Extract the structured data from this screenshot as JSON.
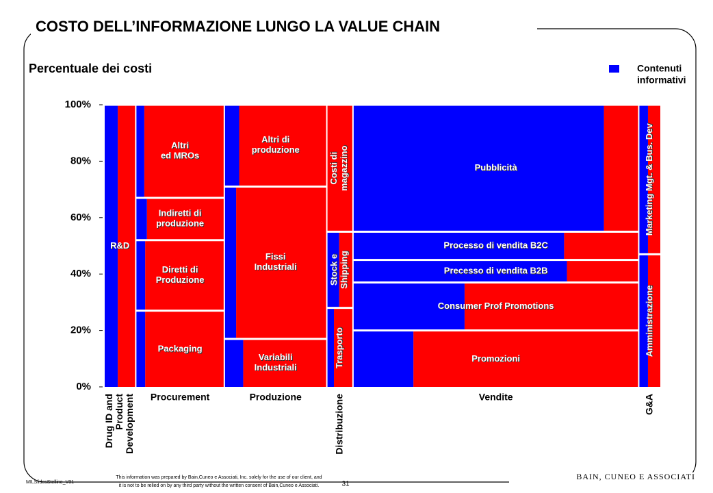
{
  "title": "COSTO DELL’INFORMAZIONE LUNGO LA VALUE CHAIN",
  "footer": {
    "file": "MILSlidesStelline_V31",
    "disclaimer": "This information was prepared by Bain,Cuneo e Associati, Inc. solely for the use of our client, and\nit is not to be relied on by any third party without the written consent of Bain,Cuneo e Associati.",
    "page": "31",
    "brand": "BAIN, CUNEO E ASSOCIATI"
  },
  "chart_data": {
    "type": "mekko",
    "subtitle": "Percentuale dei costi",
    "legend": {
      "blue": "Contenuti\ninformativi",
      "color": "#0000ff",
      "other_color": "#ff0000"
    },
    "ylim": [
      0,
      100
    ],
    "yticks": [
      {
        "value": 0,
        "label": "0%"
      },
      {
        "value": 20,
        "label": "20%"
      },
      {
        "value": 40,
        "label": "40%"
      },
      {
        "value": 60,
        "label": "60%"
      },
      {
        "value": 80,
        "label": "80%"
      },
      {
        "value": 100,
        "label": "100%"
      }
    ],
    "columns": [
      {
        "name": "Drug ID and\nProduct\nDevelopment",
        "width": 5.7,
        "segments": [
          {
            "label": "R&D",
            "value": 100,
            "blue": 43
          }
        ]
      },
      {
        "name": "Procurement",
        "width": 15.9,
        "segments": [
          {
            "label": "Packaging",
            "value": 27,
            "blue": 10
          },
          {
            "label": "Diretti di\nProduzione",
            "value": 25,
            "blue": 10
          },
          {
            "label": "Indiretti di\nproduzione",
            "value": 15,
            "blue": 12
          },
          {
            "label": "Altri\ned MROs",
            "value": 33,
            "blue": 9
          }
        ]
      },
      {
        "name": "Produzione",
        "width": 18.4,
        "segments": [
          {
            "label": "Variabili\nIndustriali",
            "value": 17,
            "blue": 18
          },
          {
            "label": "Fissi\nIndustriali",
            "value": 54,
            "blue": 11
          },
          {
            "label": "Altri di\nproduzione",
            "value": 29,
            "blue": 14
          }
        ]
      },
      {
        "name": "Distribuzione",
        "width": 4.7,
        "segments": [
          {
            "label": "Trasporto",
            "value": 28,
            "blue": 26
          },
          {
            "label": "Stock e\nShipping",
            "value": 27,
            "blue": 47
          },
          {
            "label": "Costi di\nmagazzino",
            "value": 45,
            "blue": 0
          }
        ]
      },
      {
        "name": "Vendite",
        "width": 51.3,
        "segments": [
          {
            "label": "Promozioni",
            "value": 20,
            "blue": 21
          },
          {
            "label": "Consumer Prof Promotions",
            "value": 17,
            "blue": 39
          },
          {
            "label": "Precesso di vendita B2B",
            "value": 8,
            "blue": 75
          },
          {
            "label": "Processo di vendita B2C",
            "value": 10,
            "blue": 74
          },
          {
            "label": "Pubblicità",
            "value": 45,
            "blue": 88
          }
        ]
      },
      {
        "name": "G&A",
        "width": 4.0,
        "segments": [
          {
            "label": "Amministrazione",
            "value": 47,
            "blue": 41
          },
          {
            "label": "Marketing Mgt. & Bus. Dev",
            "value": 53,
            "blue": 41
          }
        ]
      }
    ]
  }
}
